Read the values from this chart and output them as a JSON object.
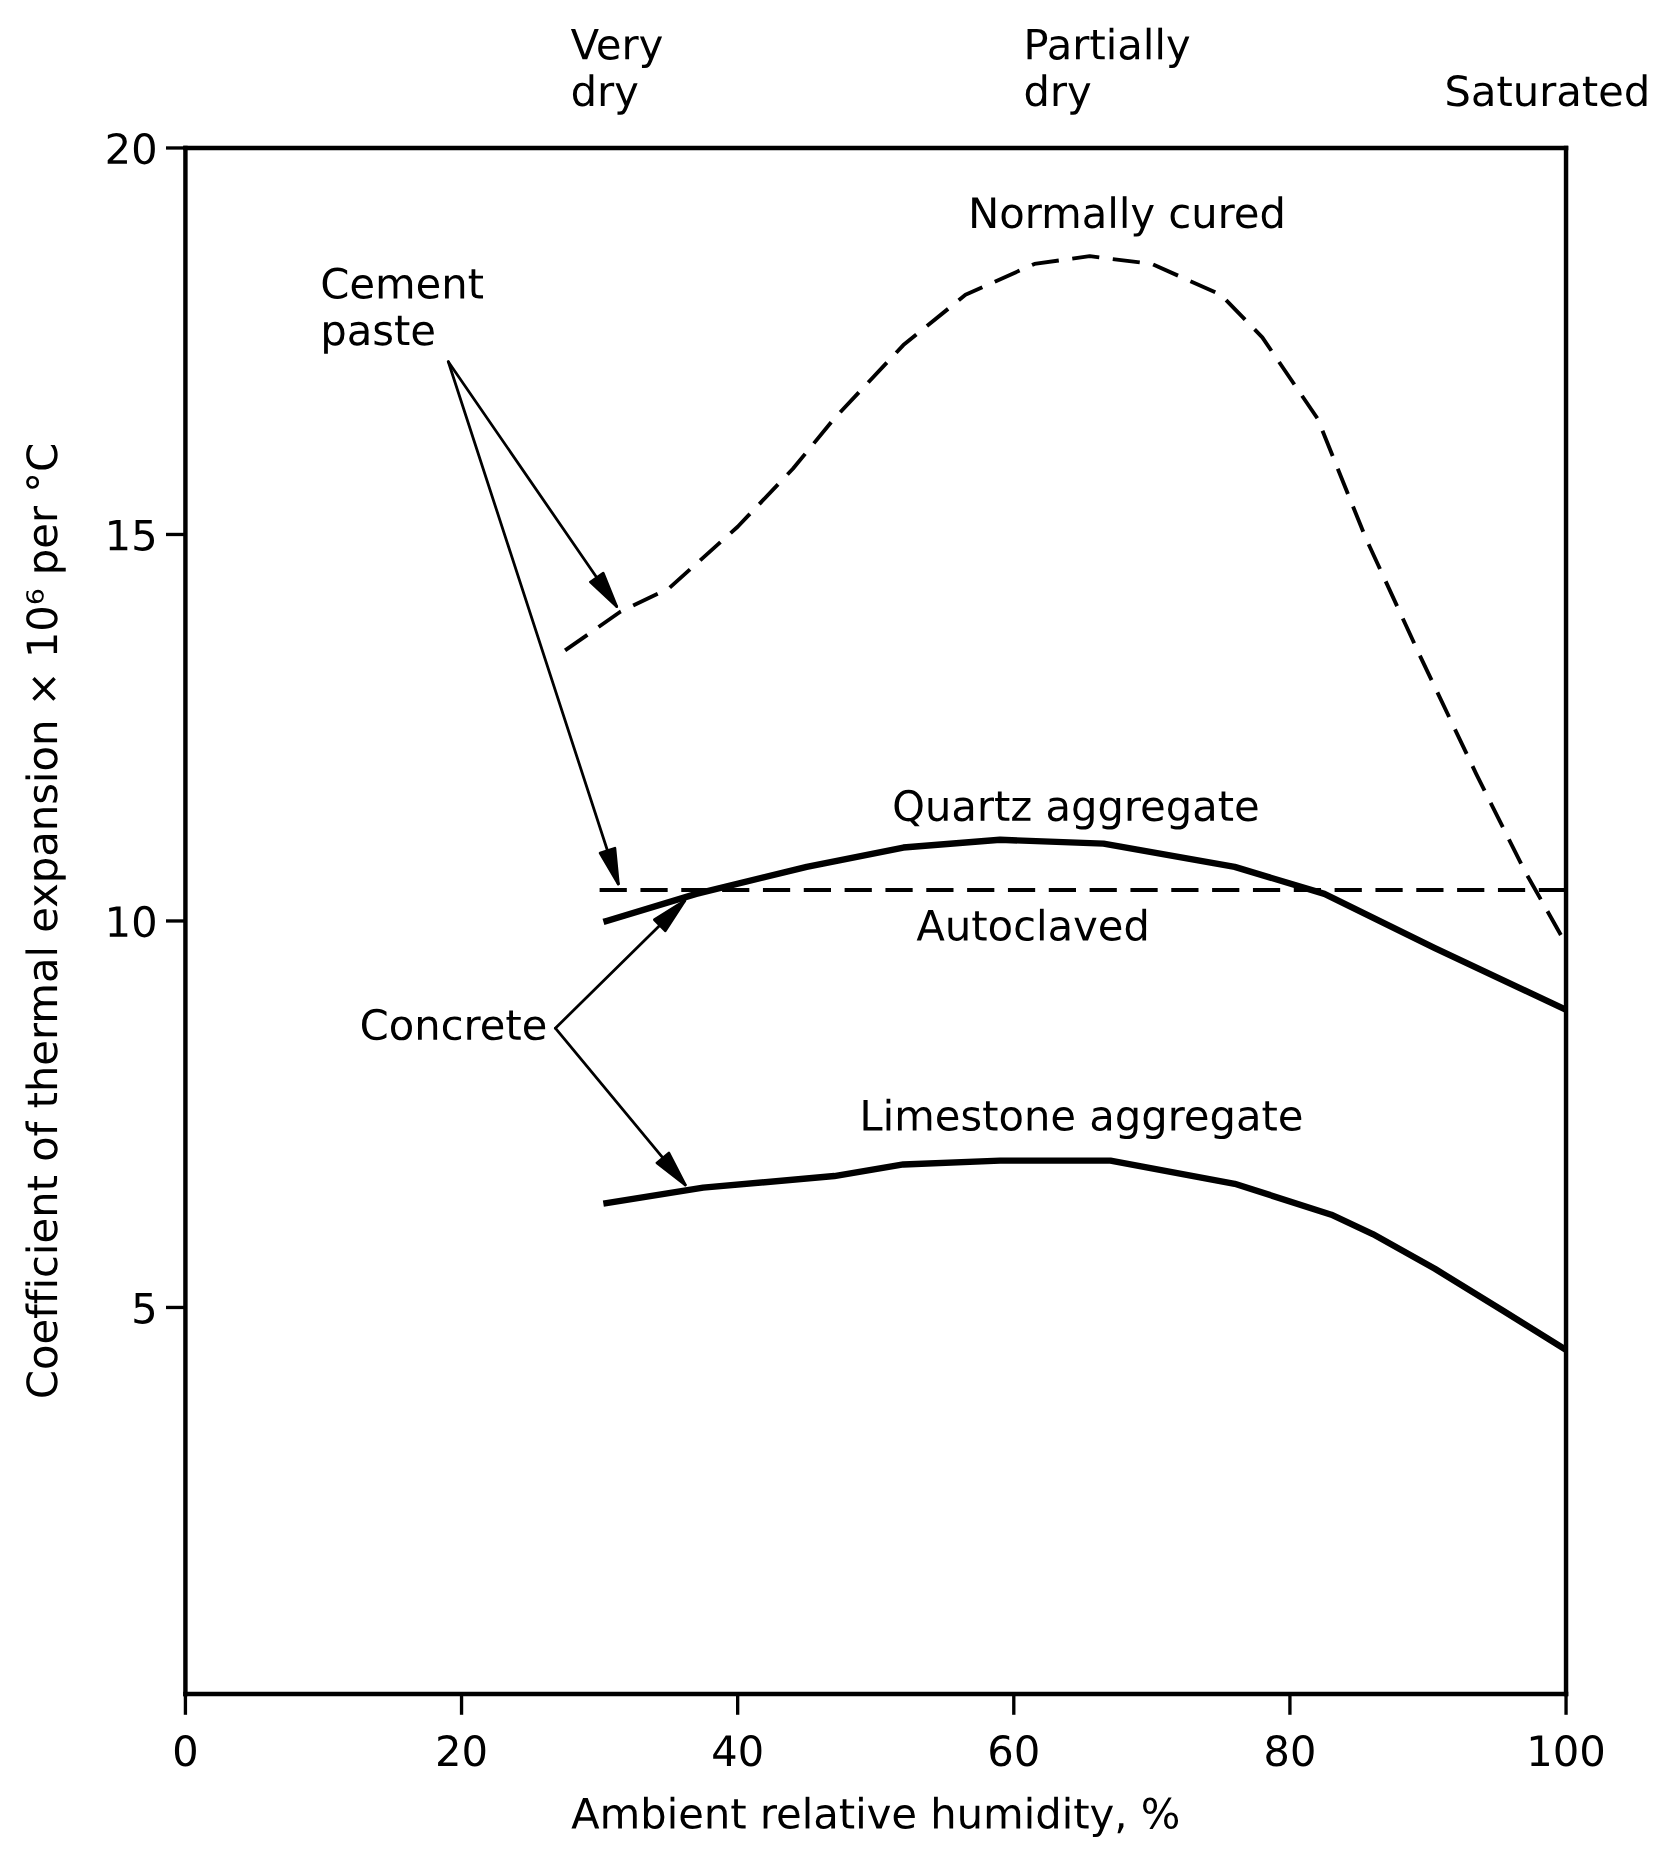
{
  "chart_data": {
    "type": "line",
    "xlabel": "Ambient relative humidity, %",
    "ylabel": "Coefficient of thermal expansion × 10⁶ per °C",
    "xlim": [
      0,
      100
    ],
    "xticks": [
      0,
      20,
      40,
      60,
      80,
      100
    ],
    "ylim": [
      0,
      20
    ],
    "yticks": [
      5,
      10,
      15,
      20
    ],
    "series": [
      {
        "name": "Normally cured",
        "color": "#000000",
        "line_style": "dashed",
        "x": [
          27.5,
          31.5,
          35,
          40,
          44,
          47,
          52,
          56.5,
          61.5,
          65.5,
          70,
          75,
          78,
          82,
          85.5,
          89.5,
          93.5,
          97,
          100
        ],
        "values": [
          13.5,
          14.0,
          14.3,
          15.1,
          15.85,
          16.5,
          17.45,
          18.1,
          18.5,
          18.6,
          18.5,
          18.1,
          17.55,
          16.5,
          14.95,
          13.4,
          11.9,
          10.65,
          9.7
        ]
      },
      {
        "name": "Quartz aggregate",
        "color": "#000000",
        "line_style": "solid",
        "x": [
          30.5,
          37,
          45,
          52,
          59,
          66.5,
          76,
          82.5,
          90.5,
          100
        ],
        "values": [
          10.0,
          10.35,
          10.7,
          10.95,
          11.05,
          11.0,
          10.7,
          10.35,
          9.65,
          8.85
        ]
      },
      {
        "name": "Autoclaved",
        "color": "#000000",
        "line_style": "dashed",
        "x": [
          30,
          100
        ],
        "values": [
          10.4,
          10.4
        ]
      },
      {
        "name": "Limestone aggregate",
        "color": "#000000",
        "line_style": "solid",
        "x": [
          30.5,
          37.5,
          47,
          52,
          59,
          67,
          76,
          83,
          86,
          90.5,
          95.5,
          100
        ],
        "values": [
          6.35,
          6.55,
          6.7,
          6.85,
          6.9,
          6.9,
          6.6,
          6.2,
          5.95,
          5.5,
          4.95,
          4.45
        ]
      }
    ],
    "annotations": [
      "Very\ndry",
      "Partially\ndry",
      "Saturated",
      {
        "text": "Cement\npaste",
        "x": 31.5,
        "y": 14.0
      },
      {
        "text": "Concrete",
        "x": 36.5,
        "y": 10.32
      }
    ]
  }
}
